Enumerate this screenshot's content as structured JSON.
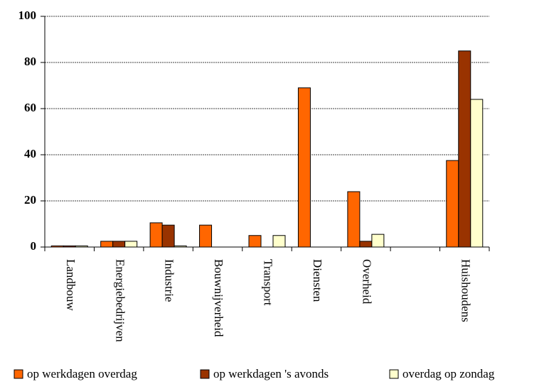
{
  "chart_data": {
    "type": "bar",
    "categories": [
      "Landbouw",
      "Energiebedrijven",
      "Industrie",
      "Bouwnijverheid",
      "Transport",
      "Diensten",
      "Overheid",
      null,
      "Huishoudens"
    ],
    "series": [
      {
        "name": "op werkdagen overdag",
        "color": "#ff6600",
        "values": [
          0.5,
          2.5,
          10.5,
          9.5,
          5,
          69,
          24,
          0,
          37.5
        ]
      },
      {
        "name": "op werkdagen 's avonds",
        "color": "#993300",
        "values": [
          0.5,
          2.5,
          9.5,
          0,
          0,
          0,
          2.5,
          0,
          85
        ]
      },
      {
        "name": "overdag op zondag",
        "color": "#ffffcc",
        "values": [
          0.5,
          2.5,
          0.5,
          0,
          5,
          0,
          5.5,
          0,
          64
        ]
      }
    ],
    "ylim": [
      0,
      100
    ],
    "yticks": [
      0,
      20,
      40,
      60,
      80,
      100
    ],
    "grid": true,
    "legend": "bottom"
  }
}
